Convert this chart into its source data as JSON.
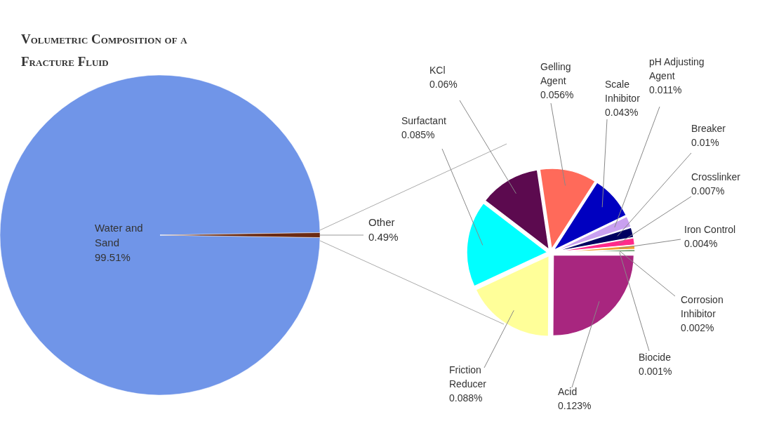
{
  "chart_data": [
    {
      "type": "pie",
      "title": "Volumetric Composition of a Fracture Fluid",
      "categories": [
        "Water and Sand",
        "Other"
      ],
      "values": [
        99.51,
        0.49
      ],
      "colors": [
        "#7095e8",
        "#6b2a12"
      ],
      "value_labels": [
        "99.51%",
        "0.49%"
      ]
    },
    {
      "type": "pie",
      "categories": [
        "Acid",
        "Friction Reducer",
        "Surfactant",
        "KCl",
        "Gelling Agent",
        "Scale Inhibitor",
        "pH Adjusting Agent",
        "Breaker",
        "Crosslinker",
        "Iron Control",
        "Corrosion Inhibitor",
        "Biocide"
      ],
      "values": [
        0.123,
        0.088,
        0.085,
        0.06,
        0.056,
        0.043,
        0.011,
        0.01,
        0.007,
        0.004,
        0.002,
        0.001
      ],
      "colors": [
        "#a8267f",
        "#ffff99",
        "#00ffff",
        "#5c0a4f",
        "#ff6a5a",
        "#0000c0",
        "#c9a0f0",
        "#000060",
        "#ff2a8a",
        "#f0a030",
        "#408040",
        "#808080"
      ],
      "value_labels": [
        "0.123%",
        "0.088%",
        "0.085%",
        "0.06%",
        "0.056%",
        "0.043%",
        "0.011%",
        "0.01%",
        "0.007%",
        "0.004%",
        "0.002%",
        "0.001%"
      ]
    }
  ]
}
